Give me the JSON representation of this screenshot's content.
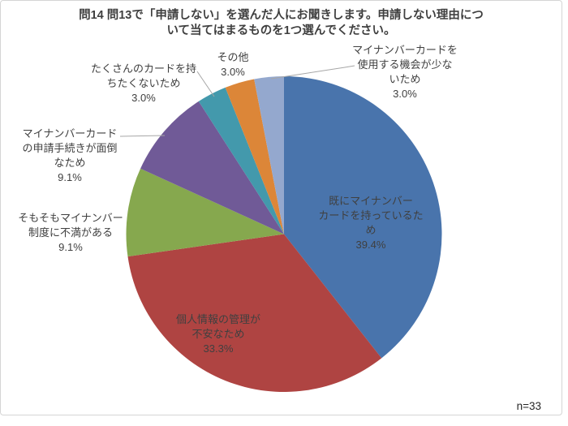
{
  "title": {
    "line1": "問14 問13で「申請しない」を選んだ人にお聞きします。申請しない理由につ",
    "line2": "いて当てはまるものを1つ選んでください。",
    "full": "問14 問13で「申請しない」を選んだ人にお聞きします。申請しない理由について当てはまるものを1つ選んでください。"
  },
  "footnote": "n=33",
  "chart_data": {
    "type": "pie",
    "title": "問14 問13で「申請しない」を選んだ人にお聞きします。申請しない理由について当てはまるものを1つ選んでください。",
    "sample_size_label": "n=33",
    "start_angle_deg": 0,
    "direction": "clockwise",
    "legend": "none",
    "slices": [
      {
        "id": "already-have-card",
        "label": "既にマイナンバーカードを持っているため",
        "lines": [
          "既にマイナンバー",
          "カードを持っているた",
          "め"
        ],
        "pct": "39.4%",
        "percent": 39.4,
        "value": 13,
        "color": "#4974AC",
        "label_placement": "inside"
      },
      {
        "id": "privacy-concern",
        "label": "個人情報の管理が不安なため",
        "lines": [
          "個人情報の管理が",
          "不安なため"
        ],
        "pct": "33.3%",
        "percent": 33.3,
        "value": 11,
        "color": "#AF4442",
        "label_placement": "inside"
      },
      {
        "id": "dissatisfied-with-system",
        "label": "そもそもマイナンバー制度に不満がある",
        "lines": [
          "そもそもマイナンバー",
          "制度に不満がある"
        ],
        "pct": "9.1%",
        "percent": 9.1,
        "value": 3,
        "color": "#86A84E",
        "label_placement": "outside"
      },
      {
        "id": "application-procedure-troublesome",
        "label": "マイナンバーカードの申請手続きが面倒なため",
        "lines": [
          "マイナンバーカード",
          "の申請手続きが面倒",
          "なため"
        ],
        "pct": "9.1%",
        "percent": 9.1,
        "value": 3,
        "color": "#705A97",
        "label_placement": "outside"
      },
      {
        "id": "too-many-cards",
        "label": "たくさんのカードを持ちたくないため",
        "lines": [
          "たくさんのカードを持",
          "ちたくないため"
        ],
        "pct": "3.0%",
        "percent": 3.0,
        "value": 1,
        "color": "#4399AC",
        "label_placement": "outside"
      },
      {
        "id": "other",
        "label": "その他",
        "lines": [
          "その他"
        ],
        "pct": "3.0%",
        "percent": 3.0,
        "value": 1,
        "color": "#DC8638",
        "label_placement": "outside"
      },
      {
        "id": "few-usage-opportunities",
        "label": "マイナンバーカードを使用する機会が少ないため",
        "lines": [
          "マイナンバーカードを",
          "使用する機会が少な",
          "いため"
        ],
        "pct": "3.0%",
        "percent": 3.0,
        "value": 1,
        "color": "#94A8CE",
        "label_placement": "outside"
      }
    ],
    "colors": {
      "leader_line": "#A6A6A6",
      "label_text": "#404040",
      "title_text": "#3F3F3F",
      "frame_border": "#D5D5D5"
    }
  }
}
